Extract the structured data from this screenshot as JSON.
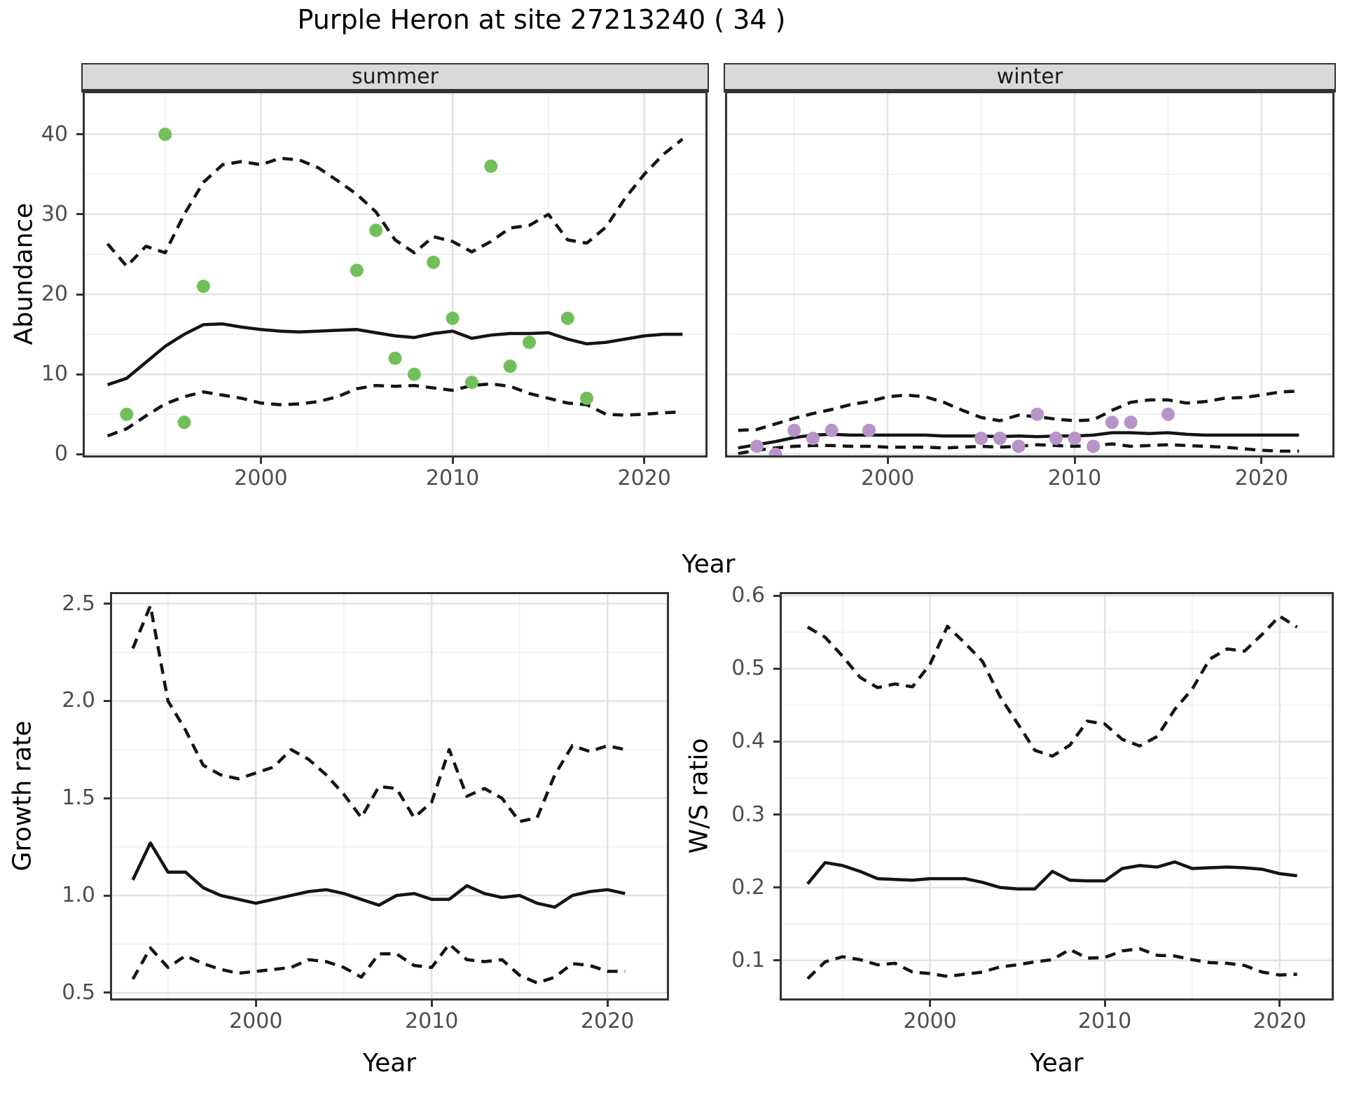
{
  "title": "Purple Heron at site 27213240 ( 34 )",
  "facets": {
    "summer_label": "summer",
    "winter_label": "winter"
  },
  "axes": {
    "abundance_label": "Abundance",
    "year_label": "Year",
    "growth_label": "Growth rate",
    "ws_label": "W/S ratio"
  },
  "colors": {
    "summer_point": "#72bf5a",
    "winter_point": "#b694c8",
    "line": "#141414",
    "strip_bg": "#d9d9d9",
    "strip_border": "#333333",
    "panel_border": "#333333",
    "grid_major": "#e2e2e2",
    "grid_minor": "#f0f0f0",
    "tick_text": "#4d4d4d"
  },
  "chart_data": [
    {
      "type": "scatter+line",
      "panel": "summer",
      "facet_label": "summer",
      "ylabel": "Abundance",
      "xlabel": "Year",
      "xlim": [
        1990.7,
        2023.3
      ],
      "ylim": [
        -0.4,
        45.4
      ],
      "xticks": [
        {
          "v": 2000,
          "label": "2000"
        },
        {
          "v": 2010,
          "label": "2010"
        },
        {
          "v": 2020,
          "label": "2020"
        }
      ],
      "xticks_minor": [
        1995,
        2005,
        2015
      ],
      "yticks": [
        {
          "v": 0,
          "label": "0"
        },
        {
          "v": 10,
          "label": "10"
        },
        {
          "v": 20,
          "label": "20"
        },
        {
          "v": 30,
          "label": "30"
        },
        {
          "v": 40,
          "label": "40"
        }
      ],
      "yticks_minor": [
        5,
        15,
        25,
        35,
        45
      ],
      "ytick_labels": true,
      "point_color": "#72bf5a",
      "points": {
        "x": [
          1993,
          1995,
          1996,
          1997,
          2005,
          2006,
          2007,
          2008,
          2009,
          2010,
          2011,
          2012,
          2013,
          2014,
          2016,
          2017
        ],
        "y": [
          5,
          40,
          4,
          21,
          23,
          28,
          12,
          10,
          24,
          17,
          9,
          36,
          11,
          14,
          17,
          7
        ]
      },
      "mean_line": {
        "x": [
          1992,
          1993,
          1994,
          1995,
          1996,
          1997,
          1998,
          1999,
          2000,
          2001,
          2002,
          2003,
          2004,
          2005,
          2006,
          2007,
          2008,
          2009,
          2010,
          2011,
          2012,
          2013,
          2014,
          2015,
          2016,
          2017,
          2018,
          2019,
          2020,
          2021,
          2022
        ],
        "y": [
          8.7,
          9.5,
          11.5,
          13.5,
          15.0,
          16.2,
          16.3,
          15.9,
          15.6,
          15.4,
          15.3,
          15.4,
          15.5,
          15.6,
          15.2,
          14.8,
          14.6,
          15.1,
          15.4,
          14.5,
          14.9,
          15.1,
          15.1,
          15.2,
          14.4,
          13.8,
          14.0,
          14.4,
          14.8,
          15.0,
          15.0
        ]
      },
      "upper_ci": {
        "x": [
          1992,
          1993,
          1994,
          1995,
          1996,
          1997,
          1998,
          1999,
          2000,
          2001,
          2002,
          2003,
          2004,
          2005,
          2006,
          2007,
          2008,
          2009,
          2010,
          2011,
          2012,
          2013,
          2014,
          2015,
          2016,
          2017,
          2018,
          2019,
          2020,
          2021,
          2022
        ],
        "y": [
          26.3,
          23.5,
          26.0,
          25.2,
          30.0,
          34.0,
          36.2,
          36.6,
          36.2,
          37.0,
          36.8,
          35.8,
          34.2,
          32.5,
          30.3,
          26.8,
          25.2,
          27.2,
          26.6,
          25.3,
          26.6,
          28.3,
          28.6,
          30.0,
          26.8,
          26.4,
          28.4,
          32.0,
          35.0,
          37.5,
          39.4
        ]
      },
      "lower_ci": {
        "x": [
          1992,
          1993,
          1994,
          1995,
          1996,
          1997,
          1998,
          1999,
          2000,
          2001,
          2002,
          2003,
          2004,
          2005,
          2006,
          2007,
          2008,
          2009,
          2010,
          2011,
          2012,
          2013,
          2014,
          2015,
          2016,
          2017,
          2018,
          2019,
          2020,
          2021,
          2022
        ],
        "y": [
          2.3,
          3.2,
          4.8,
          6.3,
          7.2,
          7.8,
          7.4,
          7.0,
          6.4,
          6.2,
          6.3,
          6.6,
          7.2,
          8.2,
          8.6,
          8.5,
          8.6,
          8.3,
          8.0,
          8.6,
          8.8,
          8.5,
          7.6,
          7.0,
          6.4,
          6.2,
          5.0,
          4.9,
          5.0,
          5.2,
          5.3
        ]
      }
    },
    {
      "type": "scatter+line",
      "panel": "winter",
      "facet_label": "winter",
      "ylabel": "Abundance",
      "xlabel": "Year",
      "xlim": [
        1991.3,
        2023.9
      ],
      "ylim": [
        -0.4,
        45.4
      ],
      "xticks": [
        {
          "v": 2000,
          "label": "2000"
        },
        {
          "v": 2010,
          "label": "2010"
        },
        {
          "v": 2020,
          "label": "2020"
        }
      ],
      "xticks_minor": [
        1995,
        2005,
        2015
      ],
      "yticks": [
        {
          "v": 0,
          "label": "0"
        },
        {
          "v": 10,
          "label": "10"
        },
        {
          "v": 20,
          "label": "20"
        },
        {
          "v": 30,
          "label": "30"
        },
        {
          "v": 40,
          "label": "40"
        }
      ],
      "yticks_minor": [
        5,
        15,
        25,
        35,
        45
      ],
      "ytick_labels": false,
      "point_color": "#b694c8",
      "points": {
        "x": [
          1993,
          1994,
          1995,
          1996,
          1997,
          1999,
          2005,
          2006,
          2007,
          2008,
          2009,
          2010,
          2011,
          2012,
          2013,
          2015
        ],
        "y": [
          1,
          0,
          3,
          2,
          3,
          3,
          2,
          2,
          1,
          5,
          2,
          2,
          1,
          4,
          4,
          5
        ]
      },
      "mean_line": {
        "x": [
          1992,
          1993,
          1994,
          1995,
          1996,
          1997,
          1998,
          1999,
          2000,
          2001,
          2002,
          2003,
          2004,
          2005,
          2006,
          2007,
          2008,
          2009,
          2010,
          2011,
          2012,
          2013,
          2014,
          2015,
          2016,
          2017,
          2018,
          2019,
          2020,
          2021,
          2022
        ],
        "y": [
          0.8,
          1.2,
          1.6,
          2.1,
          2.4,
          2.5,
          2.4,
          2.4,
          2.4,
          2.4,
          2.4,
          2.3,
          2.3,
          2.3,
          2.2,
          2.3,
          2.2,
          2.3,
          2.3,
          2.4,
          2.7,
          2.7,
          2.6,
          2.7,
          2.5,
          2.4,
          2.4,
          2.4,
          2.4,
          2.4,
          2.4
        ]
      },
      "upper_ci": {
        "x": [
          1992,
          1993,
          1994,
          1995,
          1996,
          1997,
          1998,
          1999,
          2000,
          2001,
          2002,
          2003,
          2004,
          2005,
          2006,
          2007,
          2008,
          2009,
          2010,
          2011,
          2012,
          2013,
          2014,
          2015,
          2016,
          2017,
          2018,
          2019,
          2020,
          2021,
          2022
        ],
        "y": [
          3.0,
          3.1,
          3.8,
          4.5,
          5.1,
          5.6,
          6.2,
          6.6,
          7.2,
          7.4,
          7.2,
          6.5,
          5.5,
          4.6,
          4.2,
          4.9,
          4.7,
          4.4,
          4.2,
          4.3,
          5.5,
          6.5,
          6.8,
          6.8,
          6.4,
          6.6,
          7.0,
          7.1,
          7.4,
          7.8,
          7.9
        ]
      },
      "lower_ci": {
        "x": [
          1992,
          1993,
          1994,
          1995,
          1996,
          1997,
          1998,
          1999,
          2000,
          2001,
          2002,
          2003,
          2004,
          2005,
          2006,
          2007,
          2008,
          2009,
          2010,
          2011,
          2012,
          2013,
          2014,
          2015,
          2016,
          2017,
          2018,
          2019,
          2020,
          2021,
          2022
        ],
        "y": [
          0.1,
          0.5,
          0.8,
          1.0,
          1.1,
          1.1,
          1.0,
          1.0,
          0.9,
          0.9,
          0.9,
          0.8,
          0.9,
          1.0,
          0.9,
          1.0,
          1.2,
          1.1,
          1.0,
          1.1,
          1.3,
          1.0,
          1.1,
          1.2,
          1.1,
          1.0,
          0.9,
          0.7,
          0.5,
          0.4,
          0.4
        ]
      }
    },
    {
      "type": "line",
      "panel": "growth",
      "ylabel": "Growth rate",
      "xlabel": "Year",
      "xlim": [
        1991.7,
        2023.5
      ],
      "ylim": [
        0.46,
        2.56
      ],
      "xticks": [
        {
          "v": 2000,
          "label": "2000"
        },
        {
          "v": 2010,
          "label": "2010"
        },
        {
          "v": 2020,
          "label": "2020"
        }
      ],
      "xticks_minor": [
        1995,
        2005,
        2015
      ],
      "yticks": [
        {
          "v": 0.5,
          "label": "0.5"
        },
        {
          "v": 1.0,
          "label": "1.0"
        },
        {
          "v": 1.5,
          "label": "1.5"
        },
        {
          "v": 2.0,
          "label": "2.0"
        },
        {
          "v": 2.5,
          "label": "2.5"
        }
      ],
      "yticks_minor": [
        0.75,
        1.25,
        1.75,
        2.25
      ],
      "ytick_labels": true,
      "mean_line": {
        "x": [
          1993,
          1994,
          1995,
          1996,
          1997,
          1998,
          1999,
          2000,
          2001,
          2002,
          2003,
          2004,
          2005,
          2006,
          2007,
          2008,
          2009,
          2010,
          2011,
          2012,
          2013,
          2014,
          2015,
          2016,
          2017,
          2018,
          2019,
          2020,
          2021
        ],
        "y": [
          1.08,
          1.27,
          1.12,
          1.12,
          1.04,
          1.0,
          0.98,
          0.96,
          0.98,
          1.0,
          1.02,
          1.03,
          1.01,
          0.98,
          0.95,
          1.0,
          1.01,
          0.98,
          0.98,
          1.05,
          1.01,
          0.99,
          1.0,
          0.96,
          0.94,
          1.0,
          1.02,
          1.03,
          1.01
        ]
      },
      "upper_ci": {
        "x": [
          1993,
          1994,
          1995,
          1996,
          1997,
          1998,
          1999,
          2000,
          2001,
          2002,
          2003,
          2004,
          2005,
          2006,
          2007,
          2008,
          2009,
          2010,
          2011,
          2012,
          2013,
          2014,
          2015,
          2016,
          2017,
          2018,
          2019,
          2020,
          2021
        ],
        "y": [
          2.27,
          2.49,
          2.0,
          1.85,
          1.67,
          1.62,
          1.6,
          1.63,
          1.66,
          1.75,
          1.7,
          1.62,
          1.52,
          1.4,
          1.56,
          1.55,
          1.4,
          1.48,
          1.75,
          1.51,
          1.55,
          1.5,
          1.38,
          1.4,
          1.62,
          1.77,
          1.74,
          1.77,
          1.75
        ]
      },
      "lower_ci": {
        "x": [
          1993,
          1994,
          1995,
          1996,
          1997,
          1998,
          1999,
          2000,
          2001,
          2002,
          2003,
          2004,
          2005,
          2006,
          2007,
          2008,
          2009,
          2010,
          2011,
          2012,
          2013,
          2014,
          2015,
          2016,
          2017,
          2018,
          2019,
          2020,
          2021
        ],
        "y": [
          0.57,
          0.73,
          0.63,
          0.69,
          0.65,
          0.62,
          0.6,
          0.61,
          0.62,
          0.63,
          0.67,
          0.66,
          0.63,
          0.58,
          0.7,
          0.7,
          0.64,
          0.63,
          0.75,
          0.67,
          0.66,
          0.67,
          0.59,
          0.55,
          0.58,
          0.65,
          0.64,
          0.61,
          0.61
        ]
      }
    },
    {
      "type": "line",
      "panel": "ws",
      "ylabel": "W/S ratio",
      "xlabel": "Year",
      "xlim": [
        1991.4,
        2023.1
      ],
      "ylim": [
        0.045,
        0.605
      ],
      "xticks": [
        {
          "v": 2000,
          "label": "2000"
        },
        {
          "v": 2010,
          "label": "2010"
        },
        {
          "v": 2020,
          "label": "2020"
        }
      ],
      "xticks_minor": [
        1995,
        2005,
        2015
      ],
      "yticks": [
        {
          "v": 0.1,
          "label": "0.1"
        },
        {
          "v": 0.2,
          "label": "0.2"
        },
        {
          "v": 0.3,
          "label": "0.3"
        },
        {
          "v": 0.4,
          "label": "0.4"
        },
        {
          "v": 0.5,
          "label": "0.5"
        },
        {
          "v": 0.6,
          "label": "0.6"
        }
      ],
      "yticks_minor": [
        0.15,
        0.25,
        0.35,
        0.45,
        0.55
      ],
      "ytick_labels": true,
      "mean_line": {
        "x": [
          1993,
          1994,
          1995,
          1996,
          1997,
          1998,
          1999,
          2000,
          2001,
          2002,
          2003,
          2004,
          2005,
          2006,
          2007,
          2008,
          2009,
          2010,
          2011,
          2012,
          2013,
          2014,
          2015,
          2016,
          2017,
          2018,
          2019,
          2020,
          2021
        ],
        "y": [
          0.205,
          0.234,
          0.23,
          0.222,
          0.212,
          0.211,
          0.21,
          0.212,
          0.212,
          0.212,
          0.207,
          0.2,
          0.198,
          0.198,
          0.222,
          0.21,
          0.209,
          0.209,
          0.226,
          0.23,
          0.228,
          0.235,
          0.226,
          0.227,
          0.228,
          0.227,
          0.225,
          0.219,
          0.216
        ]
      },
      "upper_ci": {
        "x": [
          1993,
          1994,
          1995,
          1996,
          1997,
          1998,
          1999,
          2000,
          2001,
          2002,
          2003,
          2004,
          2005,
          2006,
          2007,
          2008,
          2009,
          2010,
          2011,
          2012,
          2013,
          2014,
          2015,
          2016,
          2017,
          2018,
          2019,
          2020,
          2021
        ],
        "y": [
          0.557,
          0.543,
          0.517,
          0.488,
          0.474,
          0.479,
          0.475,
          0.506,
          0.558,
          0.535,
          0.51,
          0.462,
          0.425,
          0.388,
          0.38,
          0.395,
          0.428,
          0.424,
          0.403,
          0.394,
          0.407,
          0.444,
          0.472,
          0.513,
          0.527,
          0.524,
          0.547,
          0.572,
          0.557
        ]
      },
      "lower_ci": {
        "x": [
          1993,
          1994,
          1995,
          1996,
          1997,
          1998,
          1999,
          2000,
          2001,
          2002,
          2003,
          2004,
          2005,
          2006,
          2007,
          2008,
          2009,
          2010,
          2011,
          2012,
          2013,
          2014,
          2015,
          2016,
          2017,
          2018,
          2019,
          2020,
          2021
        ],
        "y": [
          0.075,
          0.098,
          0.105,
          0.101,
          0.094,
          0.096,
          0.084,
          0.082,
          0.078,
          0.081,
          0.084,
          0.091,
          0.094,
          0.098,
          0.101,
          0.115,
          0.103,
          0.104,
          0.113,
          0.116,
          0.107,
          0.106,
          0.101,
          0.097,
          0.096,
          0.093,
          0.084,
          0.08,
          0.081
        ]
      }
    }
  ]
}
